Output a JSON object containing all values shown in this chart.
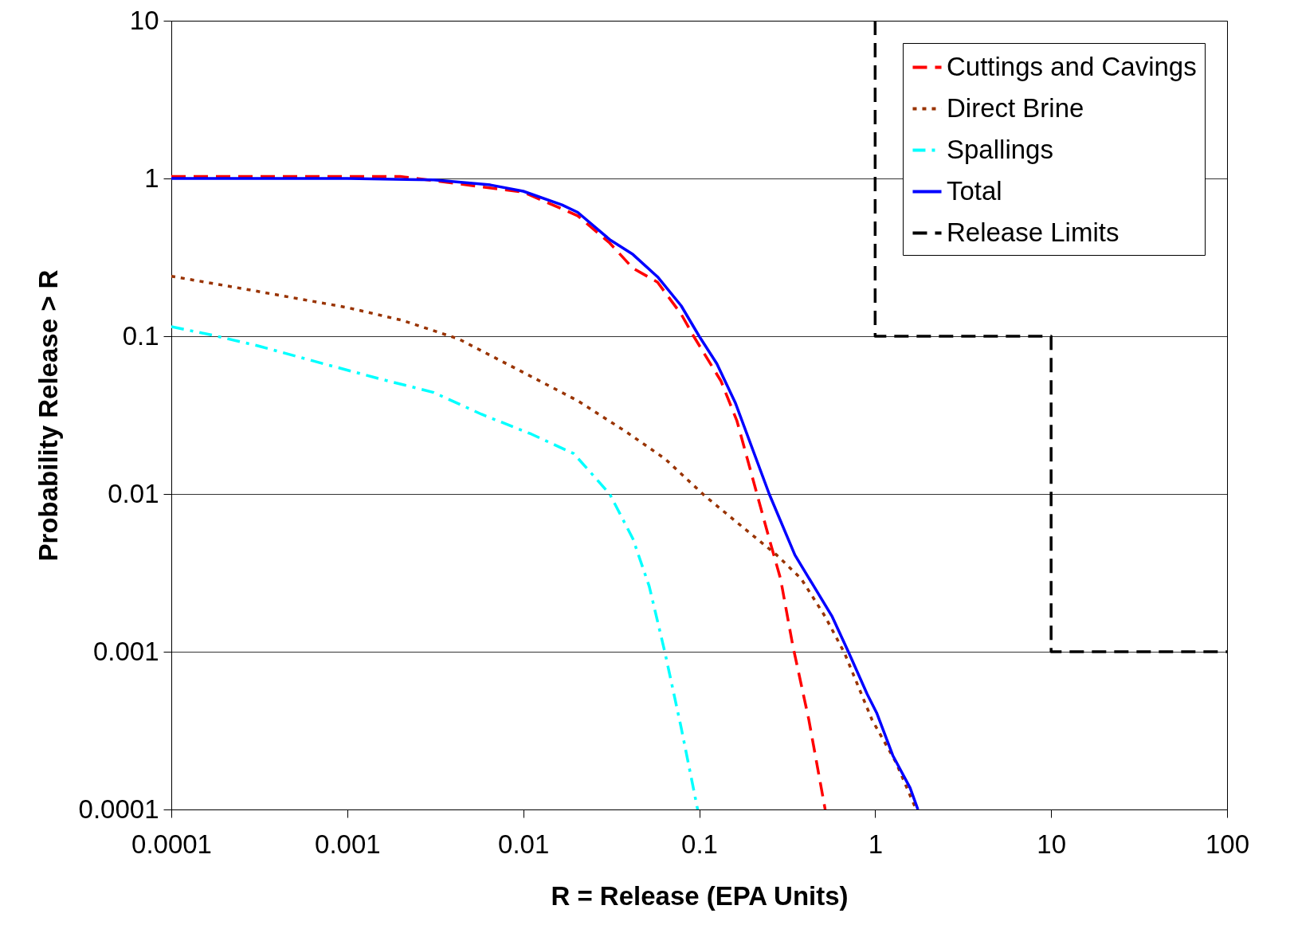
{
  "chart_data": {
    "type": "line",
    "xlabel": "R = Release (EPA Units)",
    "ylabel": "Probability Release > R",
    "log": "xy",
    "grid": "y",
    "legend": "top right",
    "xlim": [
      0.0001,
      100
    ],
    "xticks": [
      0.0001,
      0.001,
      0.01,
      0.1,
      1,
      10,
      100
    ],
    "ylim": [
      0.0001,
      10
    ],
    "yticks": [
      0.0001,
      0.001,
      0.01,
      0.1,
      1,
      10
    ],
    "series": [
      {
        "name": "Cuttings and Cavings",
        "color": "#ff0000",
        "line_style": "dashed",
        "x": [
          0.0001,
          0.002,
          0.01,
          0.0204,
          0.031,
          0.042,
          0.058,
          0.079,
          0.093,
          0.133,
          0.164,
          0.202,
          0.25,
          0.29,
          0.34,
          0.42,
          0.52
        ],
        "values": [
          1.03,
          1.03,
          0.82,
          0.58,
          0.39,
          0.27,
          0.22,
          0.138,
          0.1,
          0.052,
          0.029,
          0.0124,
          0.0052,
          0.0029,
          0.0011,
          0.00037,
          0.0001
        ]
      },
      {
        "name": "Direct Brine",
        "color": "#993300",
        "line_style": "dotted",
        "x": [
          0.0001,
          0.000256,
          0.001,
          0.00206,
          0.0043,
          0.01,
          0.0204,
          0.038,
          0.064,
          0.108,
          0.182,
          0.276,
          0.38,
          0.52,
          0.67,
          0.96,
          1.31,
          1.71
        ],
        "values": [
          0.24,
          0.2,
          0.152,
          0.126,
          0.096,
          0.059,
          0.039,
          0.025,
          0.0167,
          0.0097,
          0.006,
          0.0041,
          0.0029,
          0.00167,
          0.00098,
          0.00037,
          0.0002,
          0.0001
        ]
      },
      {
        "name": "Spallings",
        "color": "#00ffff",
        "line_style": "dashdot",
        "x": [
          0.0001,
          0.000168,
          0.00031,
          0.00073,
          0.0015,
          0.0031,
          0.0058,
          0.0111,
          0.0194,
          0.031,
          0.042,
          0.052,
          0.064,
          0.079,
          0.098
        ],
        "values": [
          0.115,
          0.102,
          0.087,
          0.067,
          0.054,
          0.044,
          0.032,
          0.024,
          0.018,
          0.01,
          0.0052,
          0.0026,
          0.00098,
          0.00033,
          0.0001
        ]
      },
      {
        "name": "Total",
        "color": "#0000ff",
        "line_style": "solid",
        "x": [
          0.0001,
          0.001,
          0.0031,
          0.0065,
          0.01,
          0.0166,
          0.0204,
          0.031,
          0.042,
          0.058,
          0.079,
          0.1,
          0.126,
          0.161,
          0.25,
          0.35,
          0.57,
          0.71,
          0.9,
          1.02,
          1.26,
          1.58,
          1.75
        ],
        "values": [
          1,
          1,
          0.98,
          0.91,
          0.83,
          0.68,
          0.61,
          0.41,
          0.33,
          0.238,
          0.156,
          0.1,
          0.067,
          0.0375,
          0.01,
          0.0041,
          0.00167,
          0.00098,
          0.00054,
          0.00041,
          0.00022,
          0.000137,
          0.0001
        ]
      },
      {
        "name": "Release Limits",
        "color": "#000000",
        "line_style": "dashed",
        "x": [
          1,
          1,
          10,
          10,
          100
        ],
        "values": [
          10,
          0.1,
          0.1,
          0.001,
          0.001
        ]
      }
    ]
  }
}
